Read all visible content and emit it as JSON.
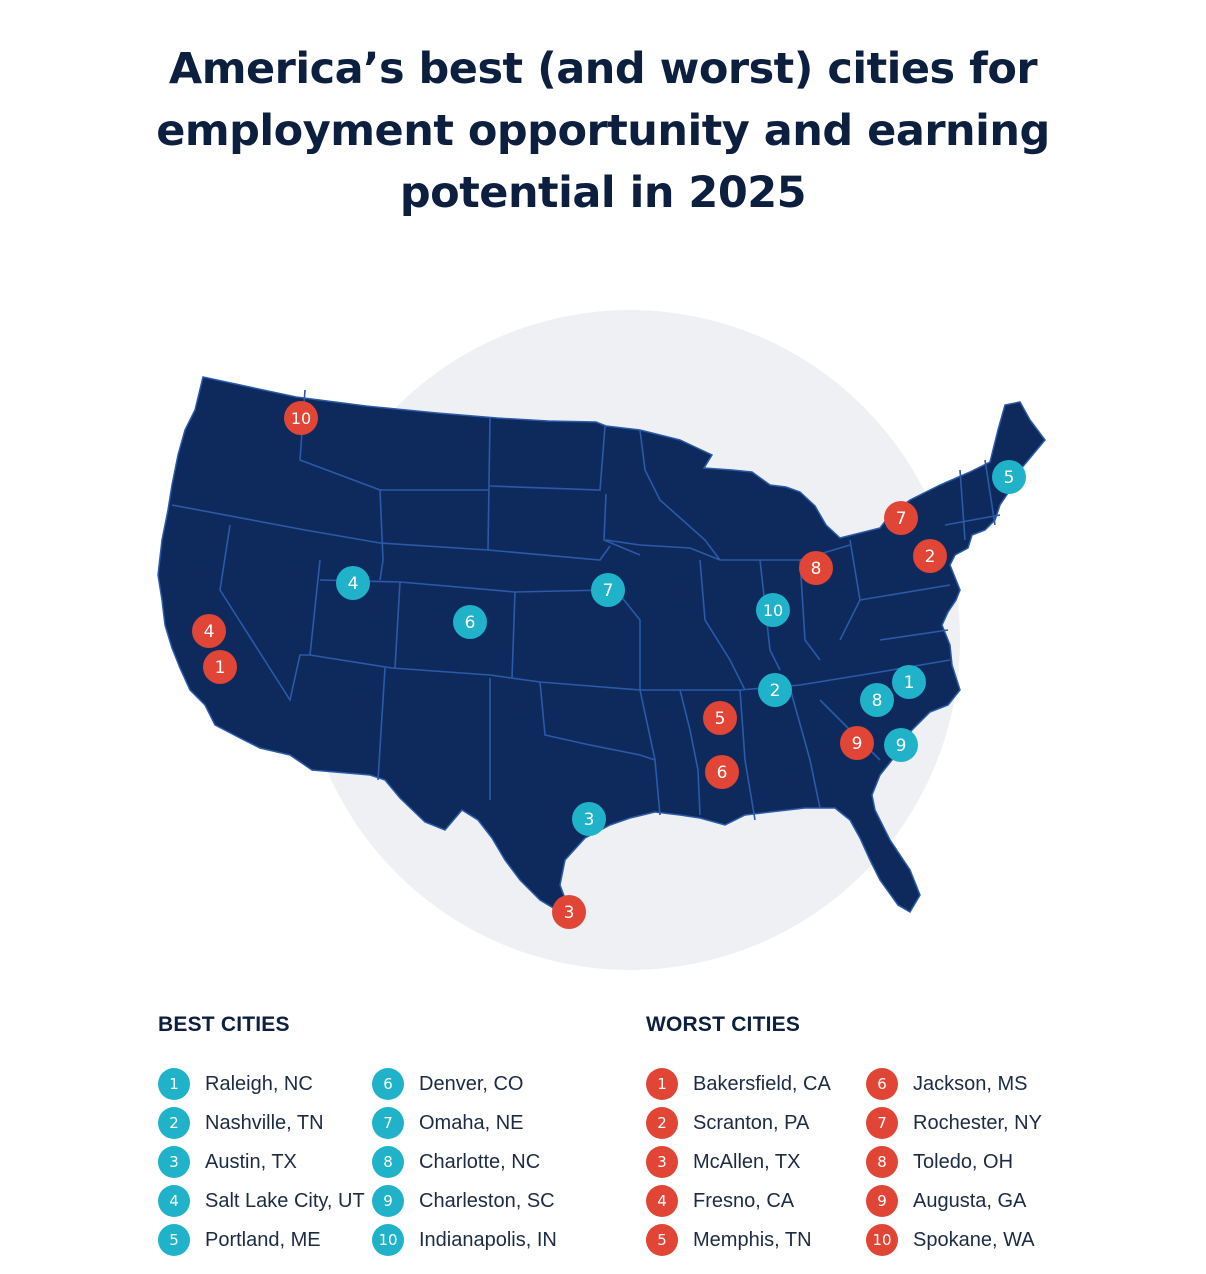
{
  "title_lines": [
    "America’s best (and worst) cities for",
    "employment opportunity and earning",
    "potential in 2025"
  ],
  "colors": {
    "map_fill": "#0e2a5c",
    "state_border": "#2a5aa8",
    "halo": "#eef0f4",
    "best": "#20b2c9",
    "worst": "#e04535"
  },
  "legend": {
    "best_heading": "BEST CITIES",
    "worst_heading": "WORST CITIES",
    "best": [
      {
        "rank": "1",
        "city": "Raleigh, NC"
      },
      {
        "rank": "2",
        "city": "Nashville, TN"
      },
      {
        "rank": "3",
        "city": "Austin, TX"
      },
      {
        "rank": "4",
        "city": "Salt Lake City, UT"
      },
      {
        "rank": "5",
        "city": "Portland, ME"
      },
      {
        "rank": "6",
        "city": "Denver, CO"
      },
      {
        "rank": "7",
        "city": "Omaha, NE"
      },
      {
        "rank": "8",
        "city": "Charlotte, NC"
      },
      {
        "rank": "9",
        "city": "Charleston, SC"
      },
      {
        "rank": "10",
        "city": "Indianapolis, IN"
      }
    ],
    "worst": [
      {
        "rank": "1",
        "city": "Bakersfield, CA"
      },
      {
        "rank": "2",
        "city": "Scranton, PA"
      },
      {
        "rank": "3",
        "city": "McAllen, TX"
      },
      {
        "rank": "4",
        "city": "Fresno, CA"
      },
      {
        "rank": "5",
        "city": "Memphis, TN"
      },
      {
        "rank": "6",
        "city": "Jackson, MS"
      },
      {
        "rank": "7",
        "city": "Rochester, NY"
      },
      {
        "rank": "8",
        "city": "Toledo, OH"
      },
      {
        "rank": "9",
        "city": "Augusta, GA"
      },
      {
        "rank": "10",
        "city": "Spokane, WA"
      }
    ]
  },
  "markers": {
    "best": [
      {
        "rank": "1",
        "lat": 35.78,
        "lon": -78.64
      },
      {
        "rank": "2",
        "lat": 36.16,
        "lon": -86.78
      },
      {
        "rank": "3",
        "lat": 30.27,
        "lon": -97.74
      },
      {
        "rank": "4",
        "lat": 40.76,
        "lon": -111.89
      },
      {
        "rank": "5",
        "lat": 43.66,
        "lon": -70.26
      },
      {
        "rank": "6",
        "lat": 39.74,
        "lon": -104.99
      },
      {
        "rank": "7",
        "lat": 41.26,
        "lon": -95.93
      },
      {
        "rank": "8",
        "lat": 35.23,
        "lon": -80.84
      },
      {
        "rank": "9",
        "lat": 32.78,
        "lon": -79.93
      },
      {
        "rank": "10",
        "lat": 39.77,
        "lon": -86.16
      }
    ],
    "worst": [
      {
        "rank": "1",
        "lat": 35.37,
        "lon": -119.02
      },
      {
        "rank": "2",
        "lat": 41.41,
        "lon": -75.66
      },
      {
        "rank": "3",
        "lat": 26.2,
        "lon": -98.23
      },
      {
        "rank": "4",
        "lat": 36.74,
        "lon": -119.79
      },
      {
        "rank": "5",
        "lat": 35.15,
        "lon": -90.05
      },
      {
        "rank": "6",
        "lat": 32.3,
        "lon": -90.18
      },
      {
        "rank": "7",
        "lat": 43.16,
        "lon": -77.61
      },
      {
        "rank": "8",
        "lat": 41.65,
        "lon": -83.54
      },
      {
        "rank": "9",
        "lat": 33.47,
        "lon": -81.97
      },
      {
        "rank": "10",
        "lat": 47.66,
        "lon": -117.43
      }
    ]
  }
}
